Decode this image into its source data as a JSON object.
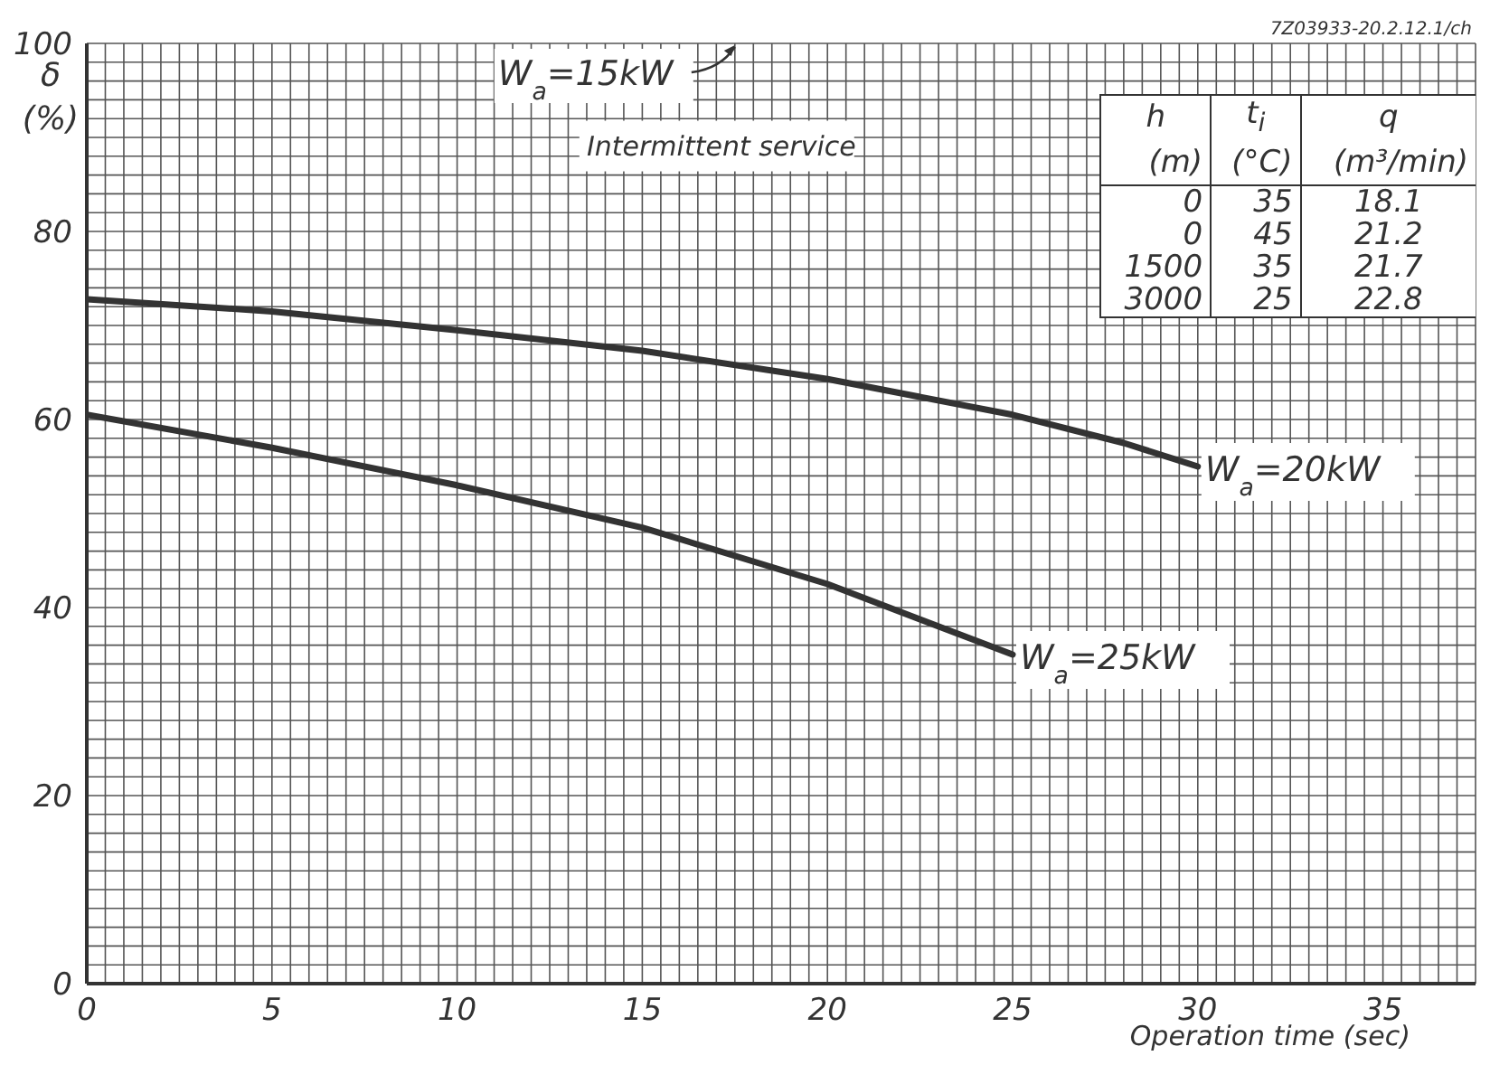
{
  "chart_data": {
    "type": "line",
    "xlabel": "Operation time (sec)",
    "ylabel": "δ (%)",
    "xlim": [
      0,
      37.5
    ],
    "ylim": [
      0,
      100
    ],
    "xticks": [
      0,
      {
        "value": 0.5,
        "label": null
      },
      {
        "value": 1,
        "label": null
      },
      {
        "value": 1.5,
        "label": null
      },
      {
        "value": 2,
        "label": null
      },
      {
        "value": 2.5,
        "label": null
      },
      {
        "value": 3,
        "label": null
      },
      {
        "value": 3.5,
        "label": null
      },
      {
        "value": 4,
        "label": null
      },
      {
        "value": 4.5,
        "label": null
      },
      5,
      {
        "value": 5.5,
        "label": null
      },
      {
        "value": 6,
        "label": null
      },
      {
        "value": 6.5,
        "label": null
      },
      {
        "value": 7,
        "label": null
      },
      {
        "value": 7.5,
        "label": null
      },
      {
        "value": 8,
        "label": null
      },
      {
        "value": 8.5,
        "label": null
      },
      {
        "value": 9,
        "label": null
      },
      {
        "value": 9.5,
        "label": null
      },
      10,
      {
        "value": 10.5,
        "label": null
      },
      {
        "value": 11,
        "label": null
      },
      {
        "value": 11.5,
        "label": null
      },
      {
        "value": 12,
        "label": null
      },
      {
        "value": 12.5,
        "label": null
      },
      {
        "value": 13,
        "label": null
      },
      {
        "value": 13.5,
        "label": null
      },
      {
        "value": 14,
        "label": null
      },
      {
        "value": 14.5,
        "label": null
      },
      15,
      {
        "value": 15.5,
        "label": null
      },
      {
        "value": 16,
        "label": null
      },
      {
        "value": 16.5,
        "label": null
      },
      {
        "value": 17,
        "label": null
      },
      {
        "value": 17.5,
        "label": null
      },
      {
        "value": 18,
        "label": null
      },
      {
        "value": 18.5,
        "label": null
      },
      {
        "value": 19,
        "label": null
      },
      {
        "value": 19.5,
        "label": null
      },
      20,
      {
        "value": 20.5,
        "label": null
      },
      {
        "value": 21,
        "label": null
      },
      {
        "value": 21.5,
        "label": null
      },
      {
        "value": 22,
        "label": null
      },
      {
        "value": 22.5,
        "label": null
      },
      {
        "value": 23,
        "label": null
      },
      {
        "value": 23.5,
        "label": null
      },
      {
        "value": 24,
        "label": null
      },
      {
        "value": 24.5,
        "label": null
      },
      25,
      {
        "value": 25.5,
        "label": null
      },
      {
        "value": 26,
        "label": null
      },
      {
        "value": 26.5,
        "label": null
      },
      {
        "value": 27,
        "label": null
      },
      {
        "value": 27.5,
        "label": null
      },
      {
        "value": 28,
        "label": null
      },
      {
        "value": 28.5,
        "label": null
      },
      {
        "value": 29,
        "label": null
      },
      {
        "value": 29.5,
        "label": null
      },
      30,
      {
        "value": 30.5,
        "label": null
      },
      {
        "value": 31,
        "label": null
      },
      {
        "value": 31.5,
        "label": null
      },
      {
        "value": 32,
        "label": null
      },
      {
        "value": 32.5,
        "label": null
      },
      {
        "value": 33,
        "label": null
      },
      {
        "value": 33.5,
        "label": null
      },
      {
        "value": 34,
        "label": null
      },
      {
        "value": 34.5,
        "label": null
      },
      35,
      {
        "value": 35.5,
        "label": null
      },
      {
        "value": 36,
        "label": null
      },
      {
        "value": 36.5,
        "label": null
      },
      {
        "value": 37,
        "label": null
      },
      {
        "value": 37.5,
        "label": null
      }
    ],
    "yticks": [
      0,
      {
        "value": 2,
        "label": null
      },
      {
        "value": 4,
        "label": null
      },
      {
        "value": 6,
        "label": null
      },
      {
        "value": 8,
        "label": null
      },
      {
        "value": 10,
        "label": null
      },
      {
        "value": 12,
        "label": null
      },
      {
        "value": 14,
        "label": null
      },
      {
        "value": 16,
        "label": null
      },
      {
        "value": 18,
        "label": null
      },
      20,
      {
        "value": 22,
        "label": null
      },
      {
        "value": 24,
        "label": null
      },
      {
        "value": 26,
        "label": null
      },
      {
        "value": 28,
        "label": null
      },
      {
        "value": 30,
        "label": null
      },
      {
        "value": 32,
        "label": null
      },
      {
        "value": 34,
        "label": null
      },
      {
        "value": 36,
        "label": null
      },
      {
        "value": 38,
        "label": null
      },
      40,
      {
        "value": 42,
        "label": null
      },
      {
        "value": 44,
        "label": null
      },
      {
        "value": 46,
        "label": null
      },
      {
        "value": 48,
        "label": null
      },
      {
        "value": 50,
        "label": null
      },
      {
        "value": 52,
        "label": null
      },
      {
        "value": 54,
        "label": null
      },
      {
        "value": 56,
        "label": null
      },
      {
        "value": 58,
        "label": null
      },
      60,
      {
        "value": 62,
        "label": null
      },
      {
        "value": 64,
        "label": null
      },
      {
        "value": 66,
        "label": null
      },
      {
        "value": 68,
        "label": null
      },
      {
        "value": 70,
        "label": null
      },
      {
        "value": 72,
        "label": null
      },
      {
        "value": 74,
        "label": null
      },
      {
        "value": 76,
        "label": null
      },
      {
        "value": 78,
        "label": null
      },
      80,
      {
        "value": 82,
        "label": null
      },
      {
        "value": 84,
        "label": null
      },
      {
        "value": 86,
        "label": null
      },
      {
        "value": 88,
        "label": null
      },
      {
        "value": 90,
        "label": null
      },
      {
        "value": 92,
        "label": null
      },
      {
        "value": 94,
        "label": null
      },
      {
        "value": 96,
        "label": null
      },
      {
        "value": 98,
        "label": null
      },
      100
    ],
    "grid": true,
    "legend": false,
    "marker": "none",
    "line_style": "solid",
    "series": [
      {
        "name": "W$_{a}$=20kW",
        "color": "#333333",
        "x": [
          0,
          5,
          10,
          15,
          20,
          25,
          28,
          30
        ],
        "values": [
          72.8,
          71.5,
          69.5,
          67.3,
          64.3,
          60.5,
          57.5,
          55
        ]
      },
      {
        "name": "W$_{a}$=25kW",
        "color": "#333333",
        "x": [
          0,
          5,
          10,
          15,
          20,
          25
        ],
        "values": [
          60.5,
          57,
          53,
          48.5,
          42.5,
          35
        ]
      }
    ],
    "annotations": [
      "7Z03933-20.2.12.1/ch",
      "W$_{a}$=15kW",
      "Intermittent service",
      "h",
      "t$_{i}$",
      "q",
      "(m)",
      "(°C)",
      "(m³/min)",
      "0",
      "35",
      "18.1",
      "0",
      "45",
      "21.2",
      "1500",
      "35",
      "21.7",
      "3000",
      "25",
      "22.8"
    ]
  }
}
